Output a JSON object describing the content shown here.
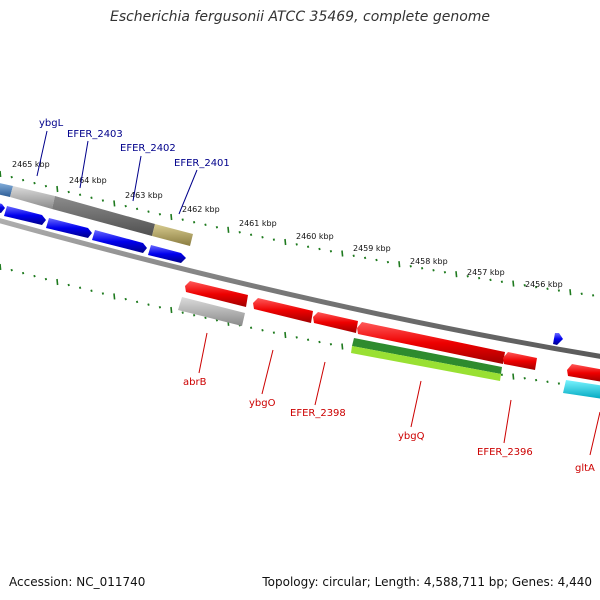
{
  "title": "Escherichia fergusonii ATCC 35469, complete genome",
  "footer": {
    "accession": "Accession: NC_011740",
    "summary": "Topology: circular; Length: 4,588,711 bp; Genes: 4,440"
  },
  "ruler_ticks": [
    "2465 kbp",
    "2464 kbp",
    "2463 kbp",
    "2462 kbp",
    "2461 kbp",
    "2460 kbp",
    "2459 kbp",
    "2458 kbp",
    "2457 kbp",
    "2456 kbp"
  ],
  "labels_top": [
    {
      "name": "ybgL",
      "color": "#00008b"
    },
    {
      "name": "EFER_2403",
      "color": "#00008b"
    },
    {
      "name": "EFER_2402",
      "color": "#00008b"
    },
    {
      "name": "EFER_2401",
      "color": "#00008b"
    }
  ],
  "labels_bottom": [
    {
      "name": "abrB",
      "color": "#cc0000"
    },
    {
      "name": "ybgO",
      "color": "#cc0000"
    },
    {
      "name": "EFER_2398",
      "color": "#cc0000"
    },
    {
      "name": "ybgQ",
      "color": "#cc0000"
    },
    {
      "name": "EFER_2396",
      "color": "#cc0000"
    },
    {
      "name": "gltA",
      "color": "#cc0000"
    }
  ],
  "colors": {
    "backbone": "#808080",
    "tick": "#1e7a1e",
    "forward_gene": "#0000ee",
    "reverse_gene": "#ee0000",
    "rrna_grey": "#9a9a9a",
    "dark_grey": "#666666",
    "khaki": "#b8aa6a",
    "green": "#2e8b2e",
    "lime": "#99e033",
    "cyan": "#00d8e8",
    "steel": "#4f84b8"
  }
}
